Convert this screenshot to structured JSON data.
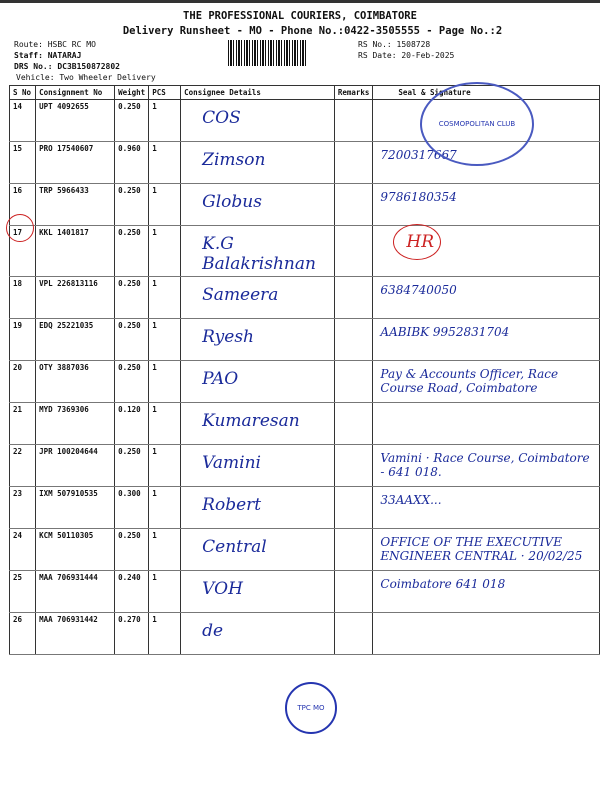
{
  "header": {
    "title": "THE PROFESSIONAL COURIERS, COIMBATORE",
    "subtitle": "Delivery Runsheet - MO - Phone No.:0422-3505555 - Page No.:2",
    "route": "Route: HSBC RC MO",
    "staff": "Staff: NATARAJ",
    "drs_no": "DRS No.: DC3B150872802",
    "vehicle": "Vehicle: Two Wheeler Delivery",
    "rs_no": "RS No.: 1508728",
    "rs_date": "RS Date: 20-Feb-2025"
  },
  "table": {
    "columns": [
      "S No",
      "Consignment No",
      "Weight",
      "PCS",
      "Consignee Details",
      "Remarks",
      "Seal & Signature"
    ],
    "rows": [
      {
        "sno": "14",
        "cons": "UPT 4092655",
        "weight": "0.250",
        "pcs": "1",
        "consignee": "COS",
        "sig": ""
      },
      {
        "sno": "15",
        "cons": "PRO 17540607",
        "weight": "0.960",
        "pcs": "1",
        "consignee": "Zimson",
        "sig": "7200317667"
      },
      {
        "sno": "16",
        "cons": "TRP 5966433",
        "weight": "0.250",
        "pcs": "1",
        "consignee": "Globus",
        "sig": "9786180354"
      },
      {
        "sno": "17",
        "cons": "KKL 1401817",
        "weight": "0.250",
        "pcs": "1",
        "consignee": "K.G Balakrishnan",
        "sig": "HR"
      },
      {
        "sno": "18",
        "cons": "VPL 226813116",
        "weight": "0.250",
        "pcs": "1",
        "consignee": "Sameera",
        "sig": "6384740050"
      },
      {
        "sno": "19",
        "cons": "EDQ 25221035",
        "weight": "0.250",
        "pcs": "1",
        "consignee": "Ryesh",
        "sig": "AABIBK 9952831704"
      },
      {
        "sno": "20",
        "cons": "OTY 3887036",
        "weight": "0.250",
        "pcs": "1",
        "consignee": "PAO",
        "sig": "Pay & Accounts Officer, Race Course Road, Coimbatore"
      },
      {
        "sno": "21",
        "cons": "MYD 7369306",
        "weight": "0.120",
        "pcs": "1",
        "consignee": "Kumaresan",
        "sig": ""
      },
      {
        "sno": "22",
        "cons": "JPR 100204644",
        "weight": "0.250",
        "pcs": "1",
        "consignee": "Vamini",
        "sig": "Vamini · Race Course, Coimbatore - 641 018."
      },
      {
        "sno": "23",
        "cons": "IXM 507910535",
        "weight": "0.300",
        "pcs": "1",
        "consignee": "Robert",
        "sig": "33AAXX..."
      },
      {
        "sno": "24",
        "cons": "KCM 50110305",
        "weight": "0.250",
        "pcs": "1",
        "consignee": "Central",
        "sig": "OFFICE OF THE EXECUTIVE ENGINEER CENTRAL · 20/02/25"
      },
      {
        "sno": "25",
        "cons": "MAA 706931444",
        "weight": "0.240",
        "pcs": "1",
        "consignee": "VOH",
        "sig": "Coimbatore 641 018"
      },
      {
        "sno": "26",
        "cons": "MAA 706931442",
        "weight": "0.270",
        "pcs": "1",
        "consignee": "de",
        "sig": ""
      }
    ]
  },
  "stamps": {
    "bottom": "TPC MO",
    "top": "COSMOPOLITAN CLUB"
  },
  "colors": {
    "ink": "#1a2a9a",
    "stamp": "#2535b0",
    "red": "#cc2222"
  }
}
